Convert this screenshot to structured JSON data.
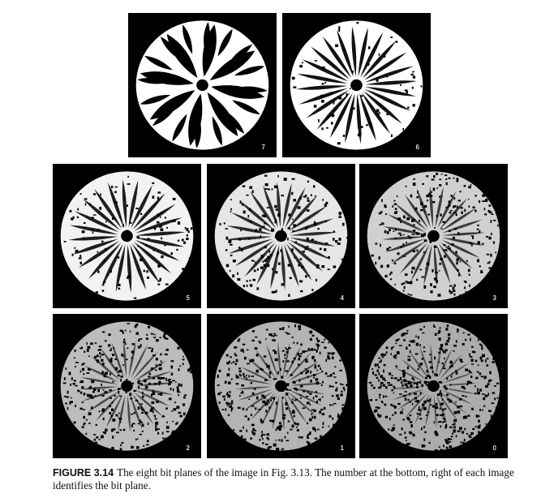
{
  "figure": {
    "label": "FIGURE 3.14",
    "caption": "The eight bit planes of the image in Fig. 3.13. The number at the bottom, right of each image identifies the bit plane.",
    "panels": [
      {
        "id": "p7",
        "plane": "7",
        "noise": 0.0,
        "fill": "#ffffff"
      },
      {
        "id": "p6",
        "plane": "6",
        "noise": 0.15,
        "fill": "#ffffff"
      },
      {
        "id": "p5",
        "plane": "5",
        "noise": 0.25,
        "fill": "#f2f2f2"
      },
      {
        "id": "p4",
        "plane": "4",
        "noise": 0.4,
        "fill": "#e6e6e6"
      },
      {
        "id": "p3",
        "plane": "3",
        "noise": 0.6,
        "fill": "#d0d0d0"
      },
      {
        "id": "p2",
        "plane": "2",
        "noise": 0.8,
        "fill": "#bcbcbc"
      },
      {
        "id": "p1",
        "plane": "1",
        "noise": 0.9,
        "fill": "#b4b4b4"
      },
      {
        "id": "p0",
        "plane": "0",
        "noise": 1.0,
        "fill": "#acacac"
      }
    ]
  }
}
